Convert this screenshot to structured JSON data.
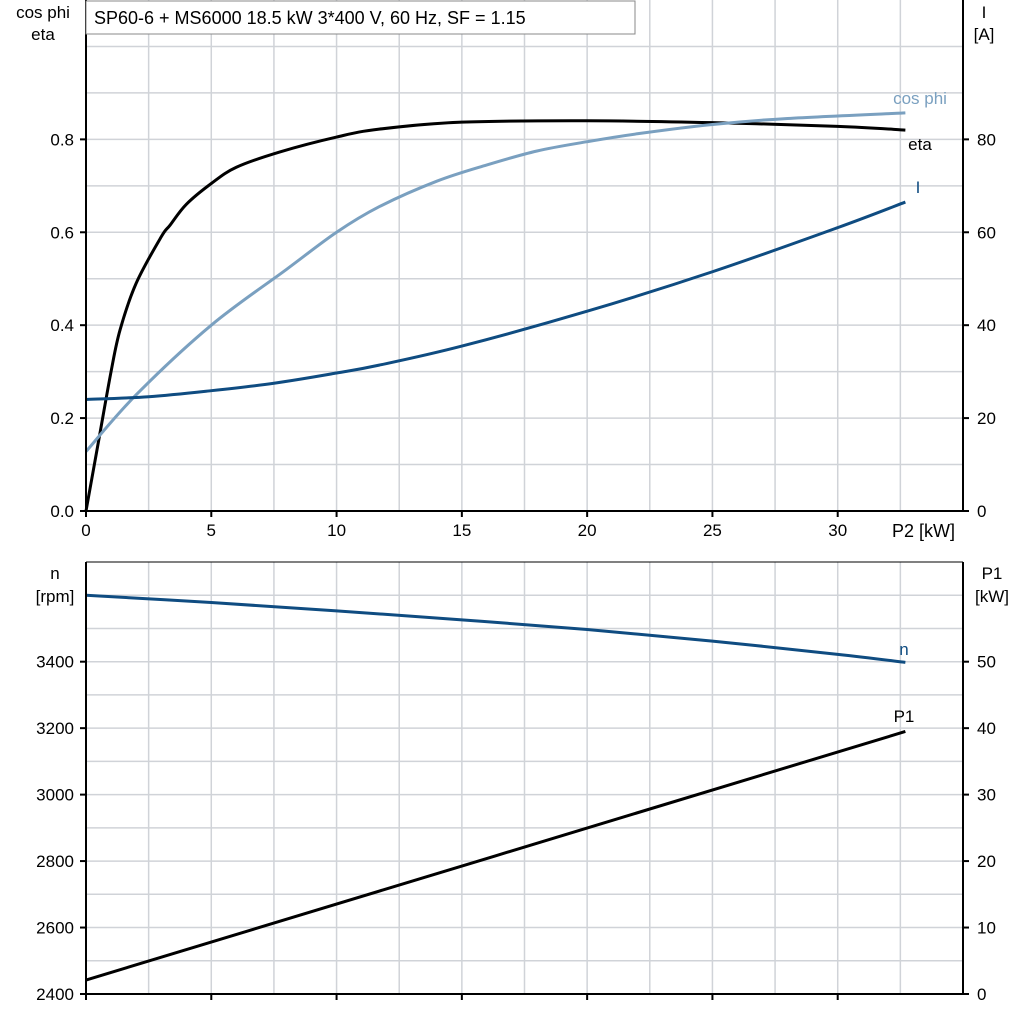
{
  "chart_data": [
    {
      "type": "line",
      "title": "SP60-6 + MS6000   18.5 kW   3*400 V, 60 Hz, SF = 1.15",
      "xlabel": "P2 [kW]",
      "ylabel_left": [
        "cos phi",
        "eta"
      ],
      "ylabel_right": [
        "I",
        "[A]"
      ],
      "xlim": [
        0,
        35
      ],
      "ylim_left": [
        0,
        1.1
      ],
      "ylim_right": [
        0,
        110
      ],
      "x_ticks": [
        0,
        5,
        10,
        15,
        20,
        25,
        30
      ],
      "y_ticks_left": [
        "0.0",
        "0.2",
        "0.4",
        "0.6",
        "0.8"
      ],
      "y_ticks_right": [
        "0",
        "20",
        "40",
        "60",
        "80"
      ],
      "grid": true,
      "series": [
        {
          "name": "eta",
          "axis": "left",
          "color": "#000000",
          "x": [
            0,
            0.5,
            1,
            1.36,
            2,
            3,
            3.35,
            4,
            5,
            6,
            7.74,
            10,
            11.7,
            15,
            20,
            25,
            30,
            32.7
          ],
          "y": [
            0,
            0.15,
            0.3,
            0.39,
            0.49,
            0.59,
            0.615,
            0.66,
            0.705,
            0.74,
            0.773,
            0.805,
            0.822,
            0.837,
            0.84,
            0.836,
            0.828,
            0.82
          ]
        },
        {
          "name": "cos phi",
          "axis": "left",
          "color": "#7aa0c0",
          "x": [
            0,
            2,
            5,
            8,
            10,
            11.7,
            14,
            16,
            18,
            20,
            22,
            25,
            28,
            32.7
          ],
          "y": [
            0.128,
            0.25,
            0.4,
            0.52,
            0.6,
            0.655,
            0.71,
            0.745,
            0.775,
            0.795,
            0.812,
            0.832,
            0.845,
            0.857
          ]
        },
        {
          "name": "I",
          "axis": "right",
          "color": "#0f4c81",
          "x": [
            0,
            2.5,
            5,
            7.5,
            10,
            11.7,
            15,
            20,
            25,
            30,
            32.7
          ],
          "y": [
            24,
            24.6,
            25.9,
            27.5,
            29.7,
            31.4,
            35.5,
            43,
            51.5,
            61,
            66.5
          ]
        }
      ]
    },
    {
      "type": "line",
      "xlim": [
        0,
        35
      ],
      "ylabel_left": [
        "n",
        "[rpm]"
      ],
      "ylabel_right": [
        "P1",
        "[kW]"
      ],
      "ylim_left": [
        2400,
        3700
      ],
      "ylim_right": [
        0,
        65
      ],
      "y_ticks_left": [
        "2400",
        "2600",
        "2800",
        "3000",
        "3200",
        "3400"
      ],
      "y_ticks_right": [
        "0",
        "10",
        "20",
        "30",
        "40",
        "50"
      ],
      "grid": true,
      "series": [
        {
          "name": "n",
          "axis": "left",
          "color": "#0f4c81",
          "x": [
            0,
            5,
            10,
            15,
            20,
            25,
            30,
            32.7
          ],
          "y": [
            3600,
            3578,
            3553,
            3526,
            3497,
            3462,
            3422,
            3398
          ]
        },
        {
          "name": "P1",
          "axis": "right",
          "color": "#000000",
          "x": [
            0,
            32.7
          ],
          "y": [
            2.1,
            39.5
          ]
        }
      ]
    }
  ]
}
